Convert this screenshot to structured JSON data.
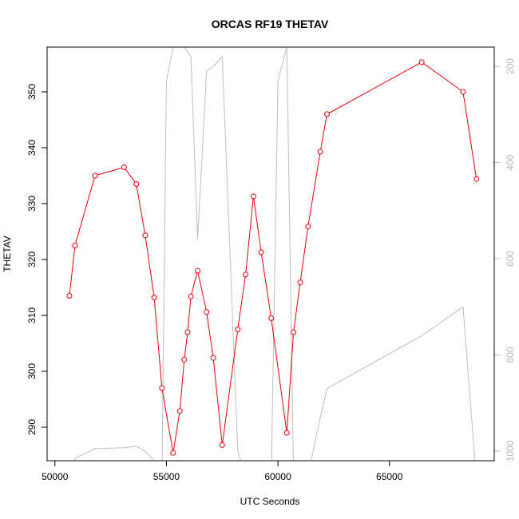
{
  "chart_data": {
    "type": "line",
    "title": "ORCAS RF19 THETAV",
    "xlabel": "UTC Seconds",
    "ylabel": "THETAV",
    "xlim": [
      49650,
      69700
    ],
    "ylim": [
      284,
      358
    ],
    "y2lim": [
      1020,
      160
    ],
    "x_ticks": [
      50000,
      55000,
      60000,
      65000
    ],
    "y_ticks": [
      290,
      300,
      310,
      320,
      330,
      340,
      350
    ],
    "y2_ticks": [
      200,
      400,
      600,
      800,
      1000
    ],
    "series": [
      {
        "color": "#e8000b",
        "axis": "left",
        "markers": true,
        "x": [
          50650,
          50900,
          51800,
          53100,
          53650,
          54050,
          54450,
          54800,
          55300,
          55600,
          55800,
          55950,
          56100,
          56400,
          56800,
          57100,
          57500,
          58200,
          58550,
          58900,
          59250,
          59700,
          60400,
          60700,
          61000,
          61350,
          61900,
          62200,
          66450,
          68300,
          68900
        ],
        "y": [
          313.5,
          322.5,
          335.0,
          336.5,
          333.5,
          324.3,
          313.2,
          297.0,
          285.4,
          292.9,
          302.1,
          307.0,
          313.4,
          318.0,
          310.6,
          302.4,
          286.8,
          307.5,
          317.3,
          331.3,
          321.3,
          309.5,
          289.0,
          307.0,
          315.9,
          325.9,
          339.3,
          346.0,
          355.3,
          350.0,
          334.4
        ]
      },
      {
        "color": "#bebebe",
        "axis": "right",
        "markers": false,
        "x": [
          50650,
          50900,
          51800,
          53100,
          53650,
          54050,
          54450,
          54800,
          55000,
          55300,
          55600,
          55800,
          56100,
          56400,
          56800,
          57100,
          57500,
          58200,
          58550,
          58900,
          59250,
          59700,
          60000,
          60400,
          60700,
          61000,
          61350,
          61900,
          62200,
          66450,
          68300,
          68900
        ],
        "y": [
          1060,
          1015,
          995,
          993,
          990,
          1000,
          1020,
          1060,
          230,
          160,
          140,
          160,
          180,
          560,
          210,
          200,
          180,
          1000,
          1050,
          1100,
          1020,
          1060,
          230,
          160,
          1040,
          1100,
          1050,
          930,
          870,
          760,
          700,
          1060
        ]
      }
    ]
  }
}
